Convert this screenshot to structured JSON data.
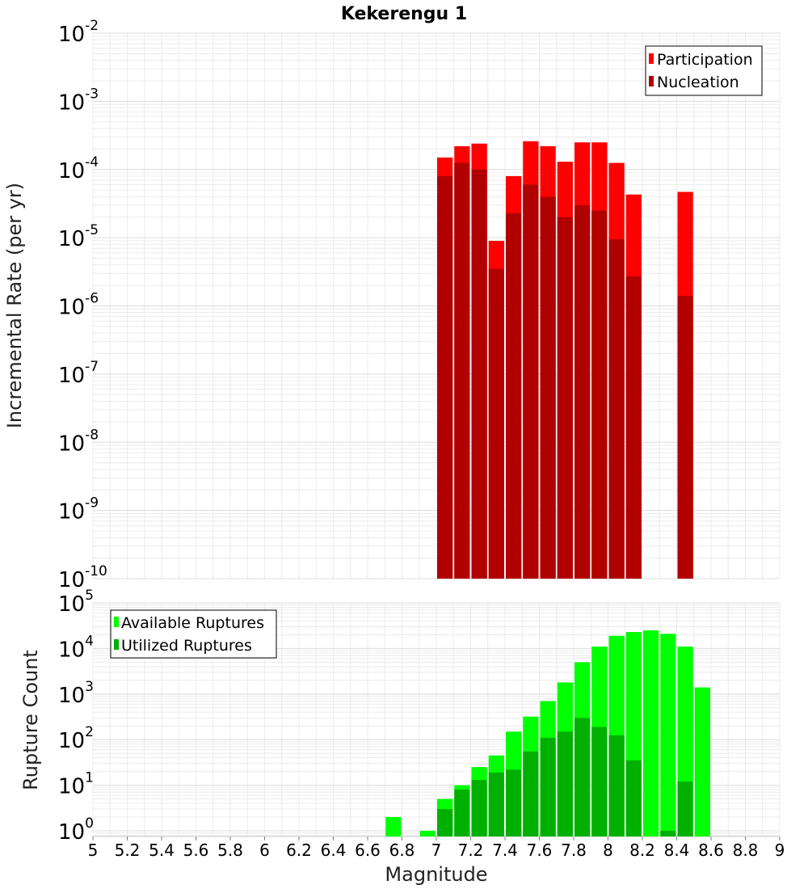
{
  "title": "Kekerengu 1",
  "chart_data": [
    {
      "type": "bar",
      "scale": "log",
      "ylabel": "Incremental Rate (per yr)",
      "xlabel": "Magnitude",
      "ylim": [
        1e-10,
        0.01
      ],
      "y_decades": [
        "-10",
        "-9",
        "-8",
        "-7",
        "-6",
        "-5",
        "-4",
        "-3",
        "-2"
      ],
      "legend": {
        "position": "top-right",
        "entries": [
          {
            "label": "Participation",
            "color": "#ff0000"
          },
          {
            "label": "Nucleation",
            "color": "#b00000"
          }
        ]
      },
      "series": [
        {
          "name": "Participation",
          "color": "#ff0000",
          "x": [
            7.05,
            7.15,
            7.25,
            7.35,
            7.45,
            7.55,
            7.65,
            7.75,
            7.85,
            7.95,
            8.05,
            8.15,
            8.45
          ],
          "values": [
            0.00015,
            0.00022,
            0.00024,
            9e-06,
            8e-05,
            0.00026,
            0.00022,
            0.00013,
            0.00025,
            0.00025,
            0.000125,
            4.3e-05,
            4.7e-05
          ]
        },
        {
          "name": "Nucleation",
          "color": "#b00000",
          "x": [
            7.05,
            7.15,
            7.25,
            7.35,
            7.45,
            7.55,
            7.65,
            7.75,
            7.85,
            7.95,
            8.05,
            8.15,
            8.45
          ],
          "values": [
            8e-05,
            0.000125,
            0.0001,
            3.5e-06,
            2.3e-05,
            6e-05,
            4e-05,
            2e-05,
            3e-05,
            2.5e-05,
            9.5e-06,
            2.7e-06,
            1.4e-06
          ]
        }
      ]
    },
    {
      "type": "bar",
      "scale": "log",
      "ylabel": "Rupture Count",
      "xlabel": "Magnitude",
      "ylim": [
        0.75,
        100000.0
      ],
      "y_decades": [
        "0",
        "1",
        "2",
        "3",
        "4",
        "5"
      ],
      "legend": {
        "position": "top-left",
        "entries": [
          {
            "label": "Available Ruptures",
            "color": "#00ff00"
          },
          {
            "label": "Utilized Ruptures",
            "color": "#00b000"
          }
        ]
      },
      "series": [
        {
          "name": "Available Ruptures",
          "color": "#00ff00",
          "x": [
            6.75,
            6.95,
            7.05,
            7.15,
            7.25,
            7.35,
            7.45,
            7.55,
            7.65,
            7.75,
            7.85,
            7.95,
            8.05,
            8.15,
            8.25,
            8.35,
            8.45,
            8.55
          ],
          "values": [
            2,
            1,
            5,
            10,
            25,
            45,
            150,
            320,
            700,
            1800,
            5000,
            11000,
            19000,
            23000,
            25000,
            21000,
            11000,
            1400
          ]
        },
        {
          "name": "Utilized Ruptures",
          "color": "#00b000",
          "x": [
            7.05,
            7.15,
            7.25,
            7.35,
            7.45,
            7.55,
            7.65,
            7.75,
            7.85,
            7.95,
            8.05,
            8.15,
            8.35,
            8.45
          ],
          "values": [
            3,
            8,
            13,
            19,
            22,
            55,
            110,
            150,
            300,
            190,
            125,
            35,
            1,
            12
          ]
        }
      ]
    }
  ],
  "x_axis": {
    "range": [
      5,
      9
    ],
    "ticks": [
      "5",
      "5.2",
      "5.4",
      "5.6",
      "5.8",
      "6",
      "6.2",
      "6.4",
      "6.6",
      "6.8",
      "7",
      "7.2",
      "7.4",
      "7.6",
      "7.8",
      "8",
      "8.2",
      "8.4",
      "8.6",
      "8.8",
      "9"
    ],
    "label": "Magnitude"
  }
}
